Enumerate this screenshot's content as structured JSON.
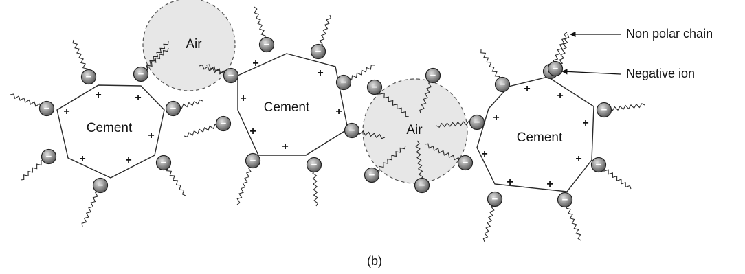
{
  "labels": {
    "cement": "Cement",
    "air": "Air",
    "negative_symbol": "−",
    "positive_symbol": "+"
  },
  "annotations": {
    "non_polar_chain": "Non polar chain",
    "negative_ion": "Negative ion"
  },
  "caption": "(b)",
  "colors": {
    "cement_fill": "#c4c4c4",
    "air_fill": "#e6e6e6",
    "ion_fill": "#6a6a6a",
    "line": "#2a2a2a"
  }
}
